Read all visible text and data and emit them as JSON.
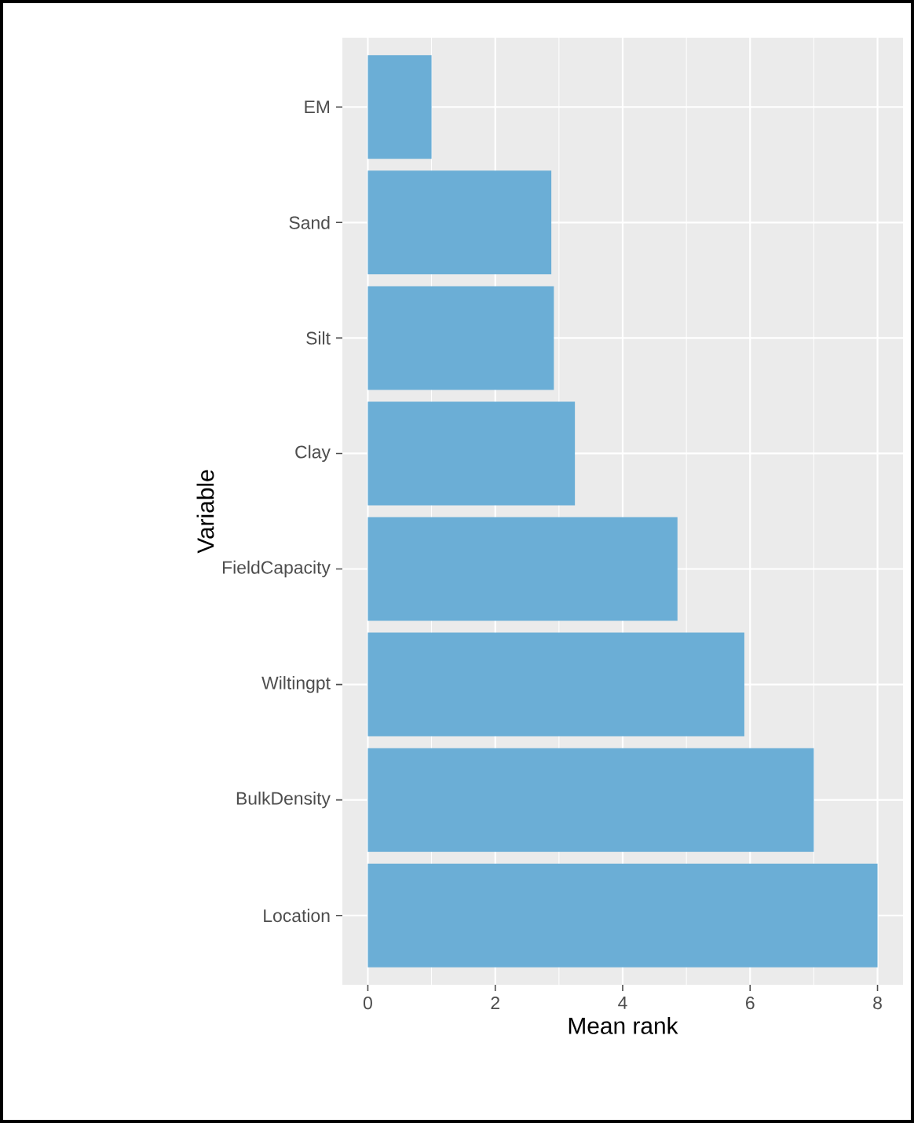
{
  "chart_data": {
    "type": "bar",
    "orientation": "horizontal",
    "xlabel": "Mean rank",
    "ylabel": "Variable",
    "categories": [
      "EM",
      "Sand",
      "Silt",
      "Clay",
      "FieldCapacity",
      "Wiltingpt",
      "BulkDensity",
      "Location"
    ],
    "values": [
      1.0,
      2.88,
      2.92,
      3.25,
      4.86,
      5.91,
      7.0,
      8.0
    ],
    "color": "#6baed6",
    "xlim": [
      -0.4,
      8.4
    ],
    "xticks": [
      0,
      2,
      4,
      6,
      8
    ],
    "grid": true
  }
}
